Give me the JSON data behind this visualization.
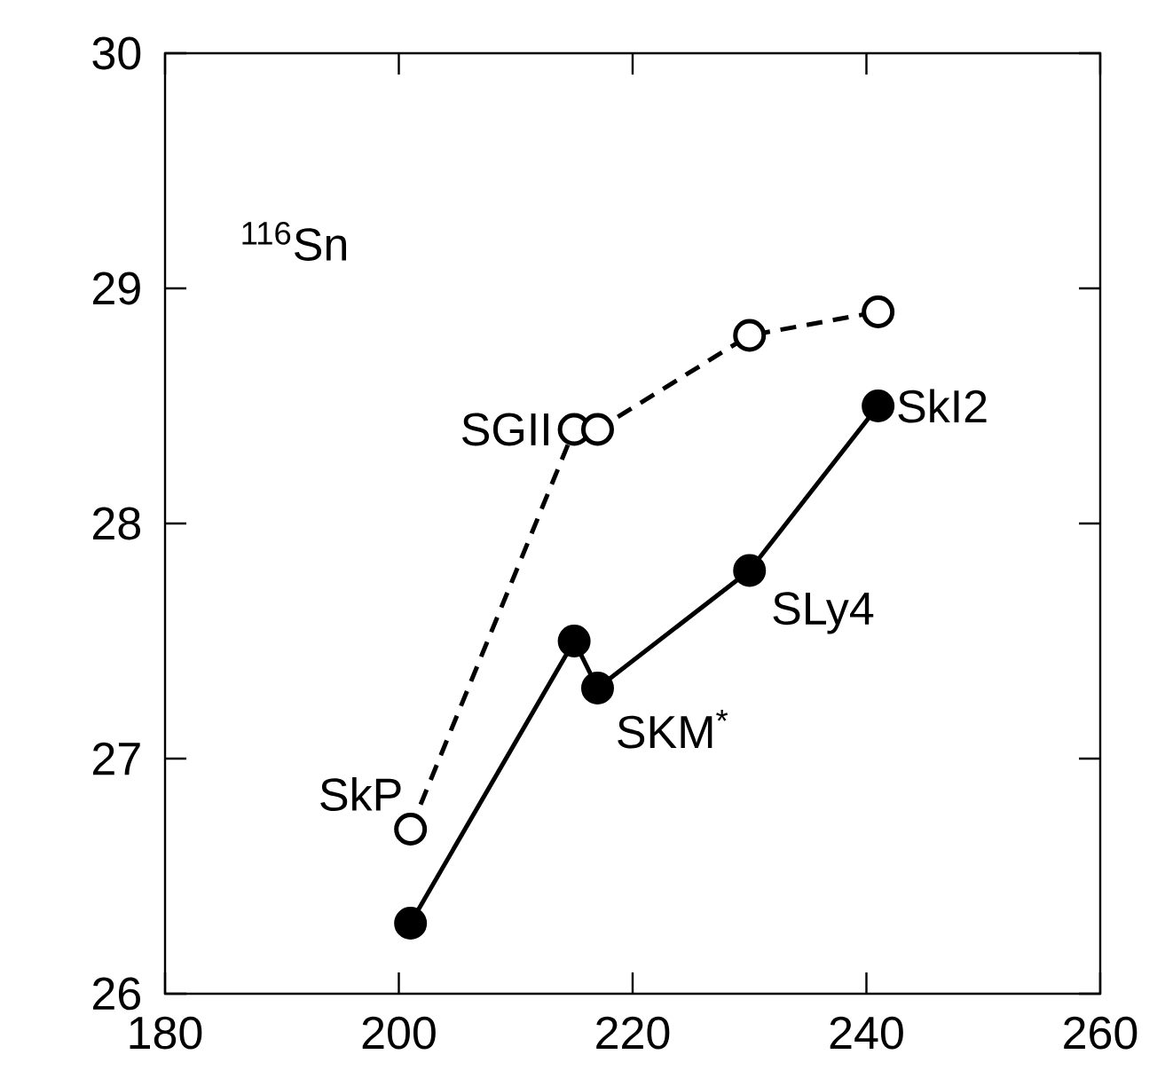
{
  "chart_data": {
    "type": "line",
    "xlim": [
      180,
      260
    ],
    "ylim": [
      26,
      30
    ],
    "xticks": [
      180,
      200,
      220,
      240,
      260
    ],
    "yticks": [
      26,
      27,
      28,
      29,
      30
    ],
    "marker": "circle",
    "series": [
      {
        "color": "#000000",
        "line_style": "dashed",
        "x": [
          201,
          215,
          217,
          230,
          241
        ],
        "values": [
          26.7,
          28.4,
          28.4,
          28.8,
          28.9
        ]
      },
      {
        "color": "#000000",
        "line_style": "solid",
        "x": [
          201,
          215,
          217,
          230,
          241
        ],
        "values": [
          26.3,
          27.5,
          27.3,
          27.8,
          28.5
        ]
      }
    ],
    "annotations": [
      "$^{116}$Sn",
      {
        "text": "SkP",
        "x": 201,
        "y": 26.7
      },
      {
        "text": "SGII",
        "x": 215,
        "y": 28.4
      },
      {
        "text": "SKM$^{*}$",
        "x": 217,
        "y": 27.3
      },
      {
        "text": "SLy4",
        "x": 230,
        "y": 27.8
      },
      {
        "text": "SkI2",
        "x": 241,
        "y": 28.5
      }
    ]
  }
}
